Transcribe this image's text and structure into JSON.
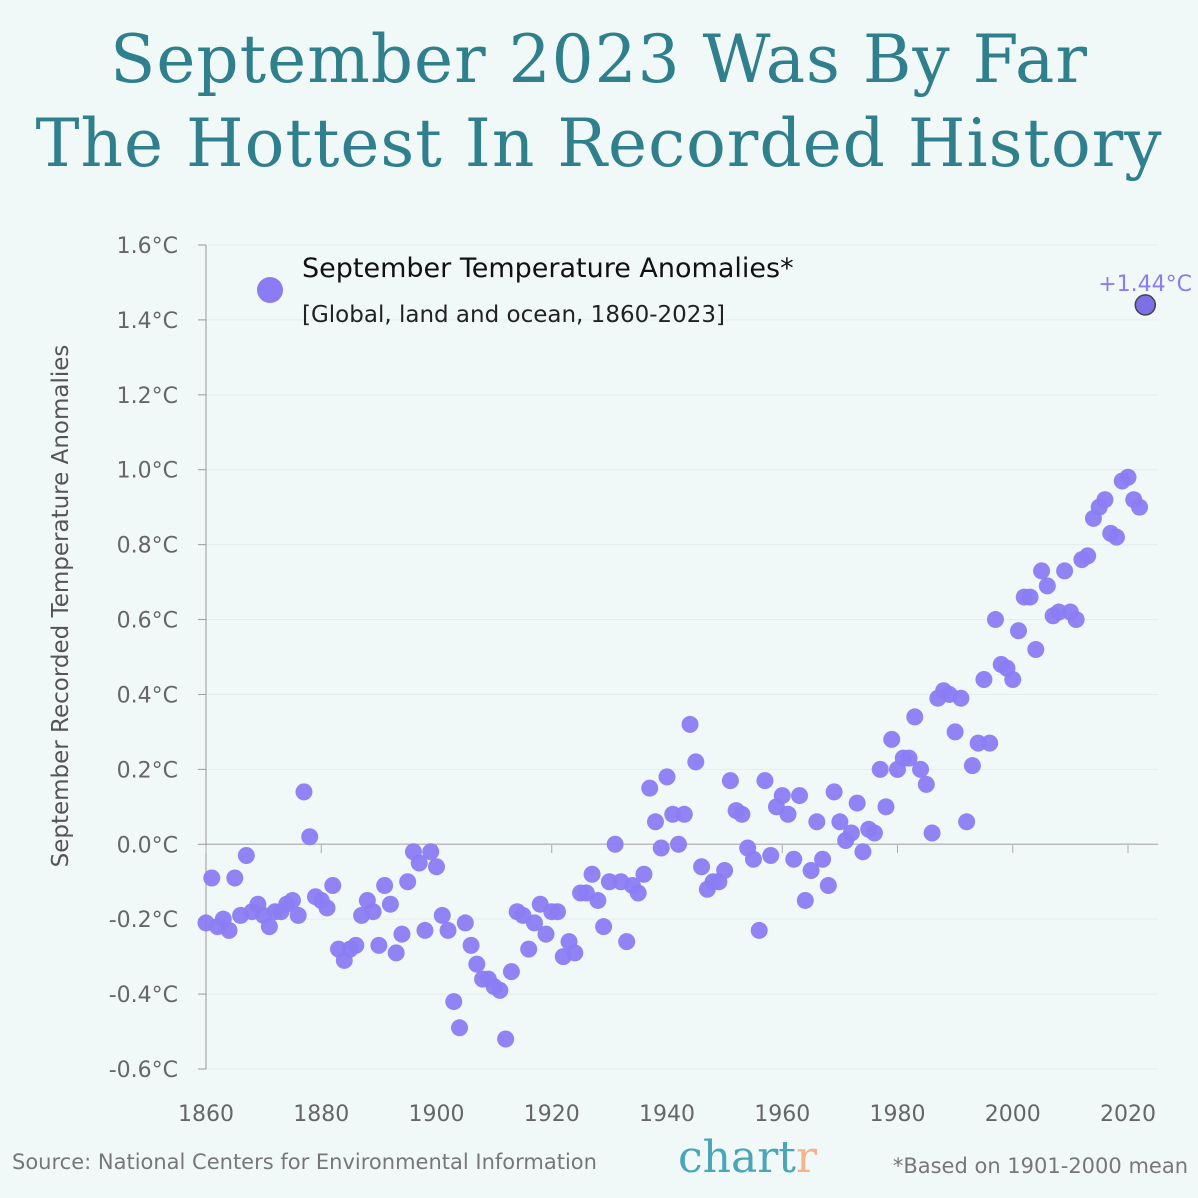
{
  "title_line1": "September 2023 Was By Far",
  "title_line2": "The Hottest In Recorded History",
  "chart_data": {
    "type": "scatter",
    "ylabel": "September Recorded Temperature Anomalies",
    "xlabel": "",
    "legend": {
      "title": "September Temperature Anomalies*",
      "subtitle": "[Global, land and ocean, 1860-2023]",
      "placement": "top-left"
    },
    "xlim": [
      1860,
      2023
    ],
    "ylim": [
      -0.6,
      1.6
    ],
    "x_ticks": [
      "1860",
      "1880",
      "1900",
      "1920",
      "1940",
      "1960",
      "1980",
      "2000",
      "2020"
    ],
    "y_ticks": [
      "1.6°C",
      "1.4°C",
      "1.2°C",
      "1.0°C",
      "0.8°C",
      "0.6°C",
      "0.4°C",
      "0.2°C",
      "0.0°C",
      "-0.2°C",
      "-0.4°C",
      "-0.6°C"
    ],
    "grid": "horizontal",
    "color": "#8b7cf3",
    "highlight_color": "#7f6fe6",
    "highlight": {
      "x": 2023,
      "y": 1.44,
      "label": "+1.44°C"
    },
    "x_start": 1860,
    "values": [
      -0.21,
      -0.09,
      -0.22,
      -0.2,
      -0.23,
      -0.09,
      -0.19,
      -0.03,
      -0.18,
      -0.16,
      -0.19,
      -0.22,
      -0.18,
      -0.18,
      -0.16,
      -0.15,
      -0.19,
      0.14,
      0.02,
      -0.14,
      -0.15,
      -0.17,
      -0.11,
      -0.28,
      -0.31,
      -0.28,
      -0.27,
      -0.19,
      -0.15,
      -0.18,
      -0.27,
      -0.11,
      -0.16,
      -0.29,
      -0.24,
      -0.1,
      -0.02,
      -0.05,
      -0.23,
      -0.02,
      -0.06,
      -0.19,
      -0.23,
      -0.42,
      -0.49,
      -0.21,
      -0.27,
      -0.32,
      -0.36,
      -0.36,
      -0.38,
      -0.39,
      -0.52,
      -0.34,
      -0.18,
      -0.19,
      -0.28,
      -0.21,
      -0.16,
      -0.24,
      -0.18,
      -0.18,
      -0.3,
      -0.26,
      -0.29,
      -0.13,
      -0.13,
      -0.08,
      -0.15,
      -0.22,
      -0.1,
      0.0,
      -0.1,
      -0.26,
      -0.11,
      -0.13,
      -0.08,
      0.15,
      0.06,
      -0.01,
      0.18,
      0.08,
      0.0,
      0.08,
      0.32,
      0.22,
      -0.06,
      -0.12,
      -0.1,
      -0.1,
      -0.07,
      0.17,
      0.09,
      0.08,
      -0.01,
      -0.04,
      -0.23,
      0.17,
      -0.03,
      0.1,
      0.13,
      0.08,
      -0.04,
      0.13,
      -0.15,
      -0.07,
      0.06,
      -0.04,
      -0.11,
      0.14,
      0.06,
      0.01,
      0.03,
      0.11,
      -0.02,
      0.04,
      0.03,
      0.2,
      0.1,
      0.28,
      0.2,
      0.23,
      0.23,
      0.34,
      0.2,
      0.16,
      0.03,
      0.39,
      0.41,
      0.4,
      0.3,
      0.39,
      0.06,
      0.21,
      0.27,
      0.44,
      0.27,
      0.6,
      0.48,
      0.47,
      0.44,
      0.57,
      0.66,
      0.66,
      0.52,
      0.73,
      0.69,
      0.61,
      0.62,
      0.73,
      0.62,
      0.6,
      0.76,
      0.77,
      0.87,
      0.9,
      0.92,
      0.83,
      0.82,
      0.97,
      0.98,
      0.92,
      0.9,
      1.44
    ]
  },
  "footer": {
    "source": "Source: National Centers for Environmental Information",
    "logo_main": "chart",
    "logo_end": "r",
    "note": "*Based on 1901-2000 mean"
  }
}
